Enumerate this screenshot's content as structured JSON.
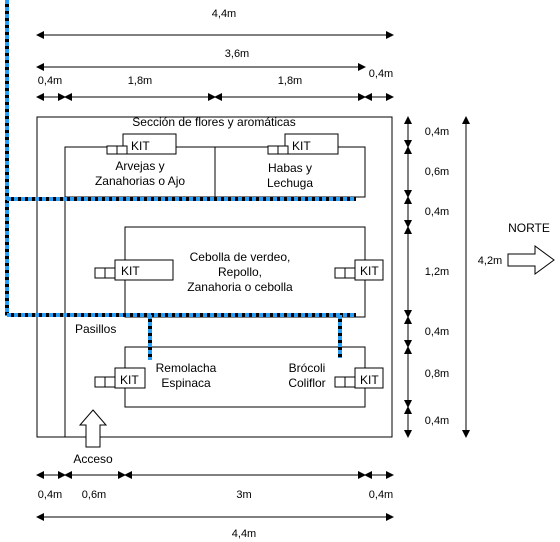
{
  "dimensions": {
    "top_total": "4,4m",
    "top_inner": "3,6m",
    "top_left_margin": "0,4m",
    "top_bed_1": "1,8m",
    "top_bed_2": "1,8m",
    "top_right_margin": "0,4m",
    "right_1": "0,4m",
    "right_2": "0,6m",
    "right_3": "0,4m",
    "right_4": "1,2m",
    "right_5": "0,4m",
    "right_6": "0,8m",
    "right_7": "0,4m",
    "height_total": "4,2m",
    "bottom_1": "0,4m",
    "bottom_2": "0,6m",
    "bottom_3": "3m",
    "bottom_4": "0,4m",
    "bottom_total": "4,4m"
  },
  "labels": {
    "flowers_section": "Sección de flores y aromáticas",
    "bed1_line1": "Arvejas y",
    "bed1_line2": "Zanahorias o Ajo",
    "bed2_line1": "Habas y",
    "bed2_line2": "Lechuga",
    "mid_line1": "Cebolla de verdeo,",
    "mid_line2": "Repollo,",
    "mid_line3": "Zanahoria o cebolla",
    "paths": "Pasillos",
    "bot_left_line1": "Remolacha",
    "bot_left_line2": "Espinaca",
    "bot_right_line1": "Brócoli",
    "bot_right_line2": "Coliflor",
    "access": "Acceso",
    "north": "NORTE",
    "kit": "KIT"
  }
}
